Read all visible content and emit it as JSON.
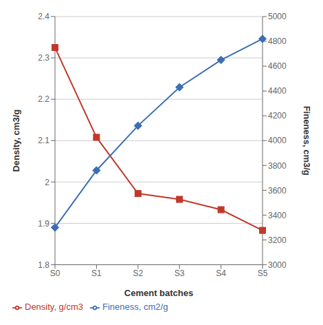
{
  "chart_data": {
    "type": "line",
    "xlabel": "Cement batches",
    "ylabel": "Density, cm3/g",
    "y2label": "Fineness, cm3/g",
    "categories": [
      "S0",
      "S1",
      "S2",
      "S3",
      "S4",
      "S5"
    ],
    "series": [
      {
        "name": "Density, g/cm3",
        "color": "#c0392b",
        "marker": "square",
        "axis": "y",
        "values": [
          2.325,
          2.108,
          1.972,
          1.958,
          1.933,
          1.883
        ]
      },
      {
        "name": "Fineness, cm2/g",
        "color": "#3c6eb4",
        "marker": "diamond",
        "axis": "y2",
        "values": [
          3300,
          3760,
          4120,
          4430,
          4650,
          4820
        ]
      }
    ],
    "ylim": [
      1.8,
      2.4
    ],
    "yticks": [
      1.8,
      1.9,
      2,
      2.1,
      2.2,
      2.3,
      2.4
    ],
    "y2lim": [
      3000,
      5000
    ],
    "y2ticks": [
      3000,
      3200,
      3400,
      3600,
      3800,
      4000,
      4200,
      4400,
      4600,
      4800,
      5000
    ],
    "grid": true,
    "legend": "lower left"
  }
}
